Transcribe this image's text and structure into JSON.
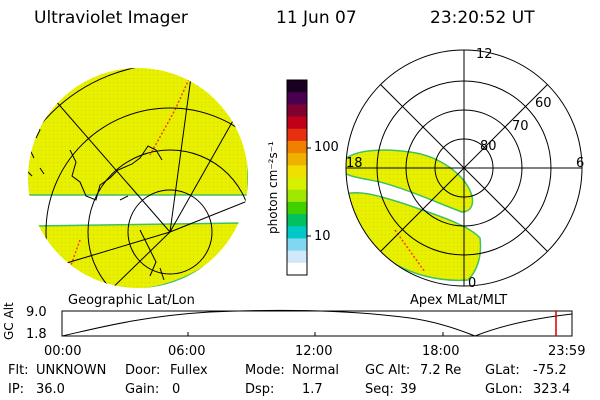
{
  "header": {
    "instrument": "Ultraviolet Imager",
    "date": "11 Jun 07",
    "time": "23:20:52 UT"
  },
  "colorbar": {
    "unit_label": "photon cm⁻²s⁻¹",
    "ticks": [
      "100",
      "10"
    ],
    "colors": [
      "#1a0020",
      "#4a0050",
      "#800030",
      "#c00018",
      "#e83010",
      "#f08000",
      "#f0b000",
      "#f0e000",
      "#d8f000",
      "#a0e800",
      "#40d000",
      "#00c060",
      "#00c8c8",
      "#80d8f0",
      "#d0e8f8",
      "#ffffff"
    ]
  },
  "left_panel": {
    "label": "Geographic Lat/Lon"
  },
  "right_panel": {
    "label": "Apex MLat/MLT",
    "lat_labels": [
      "80",
      "70",
      "60"
    ],
    "mlt_labels": [
      "12",
      "18",
      "6",
      "0"
    ]
  },
  "timeline": {
    "ylabel": "GC Alt",
    "y_ticks": [
      "9.0",
      "1.8"
    ],
    "x_ticks": [
      "00:00",
      "06:00",
      "12:00",
      "18:00",
      "23:59"
    ],
    "marker_color": "#d00000"
  },
  "info": {
    "flt_label": "Flt:",
    "flt_value": "UNKNOWN",
    "door_label": "Door:",
    "door_value": "Fullex",
    "mode_label": "Mode:",
    "mode_value": "Normal",
    "gcalt_label": "GC Alt:",
    "gcalt_value": "7.2 Re",
    "glat_label": "GLat:",
    "glat_value": "-75.2",
    "ip_label": "IP:",
    "ip_value": "36.0",
    "gain_label": "Gain:",
    "gain_value": "0",
    "dsp_label": "Dsp:",
    "dsp_value": "1.7",
    "seq_label": "Seq:",
    "seq_value": "39",
    "glon_label": "GLon:",
    "glon_value": "323.4"
  },
  "colors": {
    "emission": "#e8f000",
    "emission_edge": "#40c060",
    "streak": "#f04020",
    "grid": "#000000"
  }
}
